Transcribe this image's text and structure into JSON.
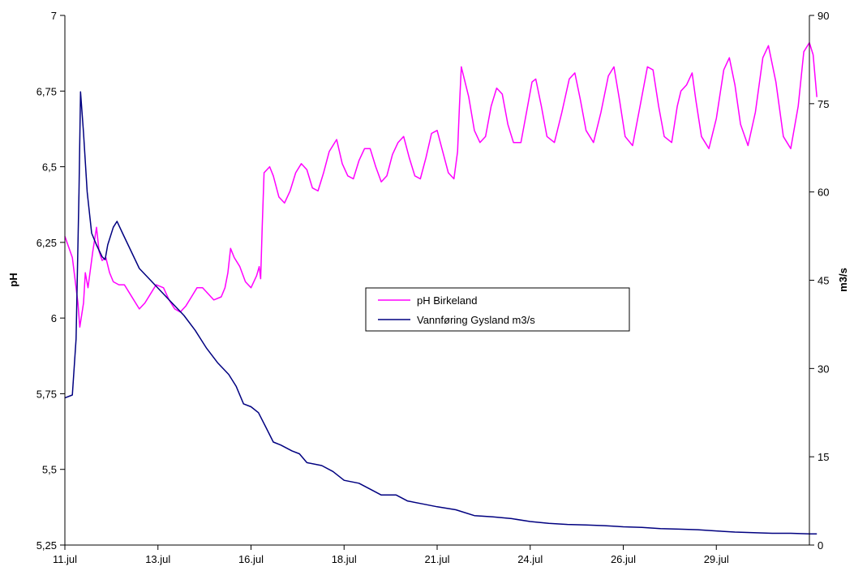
{
  "chart_data": {
    "type": "line",
    "title": "",
    "xlabel": "",
    "ylabel": "pH",
    "y2label": "m3/s",
    "xlim": [
      0,
      20
    ],
    "ylim": [
      5.25,
      7
    ],
    "y2lim": [
      0,
      90
    ],
    "x_tick_values": [
      0,
      2.5,
      5,
      7.5,
      10,
      12.5,
      15,
      17.5
    ],
    "x_tick_labels": [
      "11.jul",
      "13.jul",
      "16.jul",
      "18.jul",
      "21.jul",
      "24.jul",
      "26.jul",
      "29.jul"
    ],
    "y_ticks": [
      5.25,
      5.5,
      5.75,
      6,
      6.25,
      6.5,
      6.75,
      7
    ],
    "y_tick_labels": [
      "5,25",
      "5,5",
      "5,75",
      "6",
      "6,25",
      "6,5",
      "6,75",
      "7"
    ],
    "y2_ticks": [
      0,
      15,
      30,
      45,
      60,
      75,
      90
    ],
    "y2_tick_labels": [
      "0",
      "15",
      "30",
      "45",
      "60",
      "75",
      "90"
    ],
    "grid": false,
    "legend_position": "center",
    "series": [
      {
        "name": "pH Birkeland",
        "axis": "left",
        "color": "#ff00ff",
        "points": [
          [
            0,
            6.27
          ],
          [
            0.2,
            6.2
          ],
          [
            0.35,
            6.05
          ],
          [
            0.4,
            5.97
          ],
          [
            0.5,
            6.05
          ],
          [
            0.55,
            6.15
          ],
          [
            0.62,
            6.1
          ],
          [
            0.75,
            6.22
          ],
          [
            0.85,
            6.3
          ],
          [
            0.92,
            6.22
          ],
          [
            1.0,
            6.19
          ],
          [
            1.1,
            6.2
          ],
          [
            1.2,
            6.15
          ],
          [
            1.3,
            6.12
          ],
          [
            1.45,
            6.11
          ],
          [
            1.6,
            6.11
          ],
          [
            1.75,
            6.08
          ],
          [
            1.9,
            6.05
          ],
          [
            2.0,
            6.03
          ],
          [
            2.15,
            6.05
          ],
          [
            2.3,
            6.08
          ],
          [
            2.45,
            6.11
          ],
          [
            2.65,
            6.1
          ],
          [
            2.8,
            6.06
          ],
          [
            2.95,
            6.03
          ],
          [
            3.1,
            6.02
          ],
          [
            3.25,
            6.04
          ],
          [
            3.4,
            6.07
          ],
          [
            3.55,
            6.1
          ],
          [
            3.7,
            6.1
          ],
          [
            3.85,
            6.08
          ],
          [
            4.0,
            6.06
          ],
          [
            4.2,
            6.07
          ],
          [
            4.3,
            6.1
          ],
          [
            4.38,
            6.15
          ],
          [
            4.45,
            6.23
          ],
          [
            4.55,
            6.2
          ],
          [
            4.7,
            6.17
          ],
          [
            4.85,
            6.12
          ],
          [
            5.0,
            6.1
          ],
          [
            5.15,
            6.14
          ],
          [
            5.22,
            6.17
          ],
          [
            5.26,
            6.13
          ],
          [
            5.3,
            6.3
          ],
          [
            5.35,
            6.48
          ],
          [
            5.5,
            6.5
          ],
          [
            5.6,
            6.47
          ],
          [
            5.75,
            6.4
          ],
          [
            5.9,
            6.38
          ],
          [
            6.05,
            6.42
          ],
          [
            6.2,
            6.48
          ],
          [
            6.35,
            6.51
          ],
          [
            6.5,
            6.49
          ],
          [
            6.65,
            6.43
          ],
          [
            6.8,
            6.42
          ],
          [
            6.95,
            6.48
          ],
          [
            7.1,
            6.55
          ],
          [
            7.3,
            6.59
          ],
          [
            7.45,
            6.51
          ],
          [
            7.6,
            6.47
          ],
          [
            7.75,
            6.46
          ],
          [
            7.9,
            6.52
          ],
          [
            8.05,
            6.56
          ],
          [
            8.2,
            6.56
          ],
          [
            8.35,
            6.5
          ],
          [
            8.5,
            6.45
          ],
          [
            8.65,
            6.47
          ],
          [
            8.8,
            6.54
          ],
          [
            8.95,
            6.58
          ],
          [
            9.1,
            6.6
          ],
          [
            9.25,
            6.53
          ],
          [
            9.4,
            6.47
          ],
          [
            9.55,
            6.46
          ],
          [
            9.7,
            6.53
          ],
          [
            9.85,
            6.61
          ],
          [
            10.0,
            6.62
          ],
          [
            10.15,
            6.55
          ],
          [
            10.3,
            6.48
          ],
          [
            10.45,
            6.46
          ],
          [
            10.55,
            6.55
          ],
          [
            10.6,
            6.7
          ],
          [
            10.65,
            6.83
          ],
          [
            10.85,
            6.73
          ],
          [
            11.0,
            6.62
          ],
          [
            11.15,
            6.58
          ],
          [
            11.3,
            6.6
          ],
          [
            11.45,
            6.7
          ],
          [
            11.6,
            6.76
          ],
          [
            11.75,
            6.74
          ],
          [
            11.9,
            6.64
          ],
          [
            12.05,
            6.58
          ],
          [
            12.25,
            6.58
          ],
          [
            12.4,
            6.68
          ],
          [
            12.55,
            6.78
          ],
          [
            12.65,
            6.79
          ],
          [
            12.8,
            6.7
          ],
          [
            12.95,
            6.6
          ],
          [
            13.15,
            6.58
          ],
          [
            13.35,
            6.68
          ],
          [
            13.55,
            6.79
          ],
          [
            13.7,
            6.81
          ],
          [
            13.85,
            6.72
          ],
          [
            14.0,
            6.62
          ],
          [
            14.2,
            6.58
          ],
          [
            14.4,
            6.68
          ],
          [
            14.6,
            6.8
          ],
          [
            14.75,
            6.83
          ],
          [
            14.9,
            6.72
          ],
          [
            15.05,
            6.6
          ],
          [
            15.25,
            6.57
          ],
          [
            15.45,
            6.7
          ],
          [
            15.65,
            6.83
          ],
          [
            15.8,
            6.82
          ],
          [
            15.95,
            6.7
          ],
          [
            16.1,
            6.6
          ],
          [
            16.3,
            6.58
          ],
          [
            16.45,
            6.7
          ],
          [
            16.55,
            6.75
          ],
          [
            16.7,
            6.77
          ],
          [
            16.85,
            6.81
          ],
          [
            16.95,
            6.72
          ],
          [
            17.1,
            6.6
          ],
          [
            17.3,
            6.56
          ],
          [
            17.5,
            6.66
          ],
          [
            17.7,
            6.82
          ],
          [
            17.85,
            6.86
          ],
          [
            18.0,
            6.77
          ],
          [
            18.15,
            6.64
          ],
          [
            18.35,
            6.57
          ],
          [
            18.55,
            6.68
          ],
          [
            18.75,
            6.86
          ],
          [
            18.9,
            6.9
          ],
          [
            19.1,
            6.78
          ],
          [
            19.3,
            6.6
          ],
          [
            19.5,
            6.56
          ],
          [
            19.7,
            6.7
          ],
          [
            19.85,
            6.88
          ],
          [
            20.0,
            6.91
          ],
          [
            20.1,
            6.87
          ],
          [
            20.2,
            6.73
          ]
        ]
      },
      {
        "name": "Vannføring Gysland m3/s",
        "axis": "right",
        "color": "#000080",
        "points": [
          [
            0,
            25
          ],
          [
            0.2,
            25.5
          ],
          [
            0.3,
            35
          ],
          [
            0.38,
            60
          ],
          [
            0.42,
            77
          ],
          [
            0.5,
            70
          ],
          [
            0.6,
            60
          ],
          [
            0.72,
            53
          ],
          [
            0.85,
            51
          ],
          [
            1.0,
            49
          ],
          [
            1.08,
            48.5
          ],
          [
            1.15,
            51
          ],
          [
            1.3,
            54
          ],
          [
            1.4,
            55
          ],
          [
            1.55,
            53
          ],
          [
            1.7,
            51
          ],
          [
            1.85,
            49
          ],
          [
            2.0,
            47
          ],
          [
            2.3,
            45
          ],
          [
            2.6,
            43
          ],
          [
            2.9,
            41
          ],
          [
            3.2,
            39
          ],
          [
            3.5,
            36.5
          ],
          [
            3.8,
            33.5
          ],
          [
            4.1,
            31
          ],
          [
            4.4,
            29
          ],
          [
            4.6,
            27
          ],
          [
            4.8,
            24
          ],
          [
            5.0,
            23.5
          ],
          [
            5.2,
            22.5
          ],
          [
            5.4,
            20
          ],
          [
            5.6,
            17.5
          ],
          [
            5.8,
            17
          ],
          [
            6.1,
            16
          ],
          [
            6.3,
            15.5
          ],
          [
            6.5,
            14
          ],
          [
            6.9,
            13.5
          ],
          [
            7.2,
            12.5
          ],
          [
            7.5,
            11
          ],
          [
            7.9,
            10.5
          ],
          [
            8.2,
            9.5
          ],
          [
            8.5,
            8.5
          ],
          [
            8.9,
            8.5
          ],
          [
            9.2,
            7.5
          ],
          [
            9.6,
            7
          ],
          [
            10.0,
            6.5
          ],
          [
            10.5,
            6
          ],
          [
            11.0,
            5
          ],
          [
            11.5,
            4.8
          ],
          [
            12.0,
            4.5
          ],
          [
            12.5,
            4
          ],
          [
            13.0,
            3.7
          ],
          [
            13.5,
            3.5
          ],
          [
            14.0,
            3.4
          ],
          [
            14.5,
            3.3
          ],
          [
            15.0,
            3.1
          ],
          [
            15.5,
            3.0
          ],
          [
            16.0,
            2.8
          ],
          [
            16.5,
            2.7
          ],
          [
            17.0,
            2.6
          ],
          [
            17.5,
            2.4
          ],
          [
            18.0,
            2.2
          ],
          [
            18.5,
            2.1
          ],
          [
            19.0,
            2.0
          ],
          [
            19.5,
            2.0
          ],
          [
            20.0,
            1.9
          ],
          [
            20.2,
            1.9
          ]
        ]
      }
    ]
  }
}
